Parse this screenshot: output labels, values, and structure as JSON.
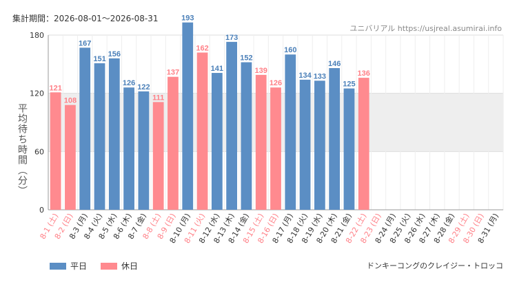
{
  "header": {
    "period": "集計期間：2026-08-01〜2026-08-31",
    "credit": "ユニバリアル  https://usjreal.asumirai.info"
  },
  "footer": {
    "attraction": "ドンキーコングのクレイジー・トロッコ"
  },
  "legend": [
    {
      "label": "平日",
      "color": "#5b8ec4"
    },
    {
      "label": "休日",
      "color": "#ff8a8f"
    }
  ],
  "colors": {
    "weekday": "#5b8ec4",
    "holiday": "#ff8a8f",
    "weekday_text": "#4a7fb8",
    "holiday_text": "#ff7f86",
    "band": "#eeeeee"
  },
  "chart_data": {
    "type": "bar",
    "ylabel": "平均待ち時間（分）",
    "ylim": [
      0,
      180
    ],
    "yticks": [
      0,
      60,
      120,
      180
    ],
    "highlight_band": [
      60,
      120
    ],
    "grid": true,
    "legend_position": "bottom-left",
    "categories": [
      "8-1 (土)",
      "8-2 (日)",
      "8-3 (月)",
      "8-4 (火)",
      "8-5 (水)",
      "8-6 (木)",
      "8-7 (金)",
      "8-8 (土)",
      "8-9 (日)",
      "8-10 (月)",
      "8-11 (火)",
      "8-12 (水)",
      "8-13 (木)",
      "8-14 (金)",
      "8-15 (土)",
      "8-16 (日)",
      "8-17 (月)",
      "8-18 (火)",
      "8-19 (水)",
      "8-20 (木)",
      "8-21 (金)",
      "8-22 (土)",
      "8-23 (日)",
      "8-24 (月)",
      "8-25 (火)",
      "8-26 (水)",
      "8-27 (木)",
      "8-28 (金)",
      "8-29 (土)",
      "8-30 (日)",
      "8-31 (月)"
    ],
    "values": [
      121,
      108,
      167,
      151,
      156,
      126,
      122,
      111,
      137,
      193,
      162,
      141,
      173,
      152,
      139,
      126,
      160,
      134,
      133,
      146,
      125,
      136,
      null,
      null,
      null,
      null,
      null,
      null,
      null,
      null,
      null
    ],
    "day_type": [
      "holiday",
      "holiday",
      "weekday",
      "weekday",
      "weekday",
      "weekday",
      "weekday",
      "holiday",
      "holiday",
      "weekday",
      "holiday",
      "weekday",
      "weekday",
      "weekday",
      "holiday",
      "holiday",
      "weekday",
      "weekday",
      "weekday",
      "weekday",
      "weekday",
      "holiday",
      "holiday",
      "weekday",
      "weekday",
      "weekday",
      "weekday",
      "weekday",
      "holiday",
      "holiday",
      "weekday"
    ]
  }
}
